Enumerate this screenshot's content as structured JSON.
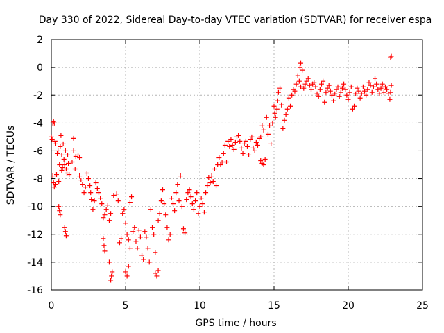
{
  "chart_data": {
    "type": "scatter",
    "title": "Day 330 of 2022, Sidereal Day-to-day VTEC variation (SDTVAR) for receiver espa",
    "xlabel": "GPS time / hours",
    "ylabel": "SDTVAR / TECUs",
    "xlim": [
      0,
      25
    ],
    "ylim": [
      -16,
      2
    ],
    "xticks": [
      0,
      5,
      10,
      15,
      20,
      25
    ],
    "yticks": [
      -16,
      -14,
      -12,
      -10,
      -8,
      -6,
      -4,
      -2,
      0,
      2
    ],
    "xtick_labels": [
      "0",
      "5",
      "10",
      "15",
      "20",
      "25"
    ],
    "ytick_labels": [
      "-16",
      "-14",
      "-12",
      "-10",
      "-8",
      "-6",
      "-4",
      "-2",
      "0",
      "2"
    ],
    "grid": true,
    "marker": "+",
    "color": "#ff0000",
    "series": [
      {
        "name": "SDTVAR",
        "points": [
          [
            0.0,
            -5.0
          ],
          [
            0.05,
            -5.2
          ],
          [
            0.1,
            -4.0
          ],
          [
            0.15,
            -3.9
          ],
          [
            0.2,
            -4.0
          ],
          [
            0.25,
            -5.3
          ],
          [
            0.3,
            -5.5
          ],
          [
            0.1,
            -7.8
          ],
          [
            0.15,
            -8.3
          ],
          [
            0.2,
            -8.6
          ],
          [
            0.3,
            -8.4
          ],
          [
            0.35,
            -7.7
          ],
          [
            0.4,
            -6.2
          ],
          [
            0.45,
            -6.0
          ],
          [
            0.5,
            -8.2
          ],
          [
            0.55,
            -7.0
          ],
          [
            0.6,
            -5.7
          ],
          [
            0.65,
            -4.9
          ],
          [
            0.7,
            -6.3
          ],
          [
            0.7,
            -7.4
          ],
          [
            0.75,
            -7.2
          ],
          [
            0.8,
            -5.5
          ],
          [
            0.85,
            -6.6
          ],
          [
            0.9,
            -7.0
          ],
          [
            0.95,
            -6.0
          ],
          [
            1.0,
            -7.3
          ],
          [
            1.05,
            -7.6
          ],
          [
            1.1,
            -6.3
          ],
          [
            1.15,
            -6.9
          ],
          [
            1.2,
            -7.7
          ],
          [
            0.5,
            -10.0
          ],
          [
            0.55,
            -10.3
          ],
          [
            0.6,
            -10.6
          ],
          [
            0.9,
            -11.5
          ],
          [
            0.95,
            -11.8
          ],
          [
            1.0,
            -12.1
          ],
          [
            1.4,
            -6.8
          ],
          [
            1.5,
            -6.0
          ],
          [
            1.5,
            -5.1
          ],
          [
            1.6,
            -7.3
          ],
          [
            1.65,
            -6.4
          ],
          [
            1.8,
            -6.3
          ],
          [
            1.9,
            -6.5
          ],
          [
            1.9,
            -7.8
          ],
          [
            2.0,
            -8.1
          ],
          [
            2.1,
            -8.4
          ],
          [
            2.2,
            -9.0
          ],
          [
            2.3,
            -8.6
          ],
          [
            2.4,
            -7.6
          ],
          [
            2.5,
            -8.0
          ],
          [
            2.6,
            -8.5
          ],
          [
            2.65,
            -9.0
          ],
          [
            2.7,
            -9.5
          ],
          [
            2.8,
            -10.2
          ],
          [
            2.9,
            -9.6
          ],
          [
            3.0,
            -8.3
          ],
          [
            3.1,
            -8.7
          ],
          [
            3.2,
            -9.0
          ],
          [
            3.3,
            -9.4
          ],
          [
            3.4,
            -9.8
          ],
          [
            3.5,
            -10.8
          ],
          [
            3.6,
            -10.6
          ],
          [
            3.7,
            -10.2
          ],
          [
            3.8,
            -9.9
          ],
          [
            3.9,
            -11.0
          ],
          [
            4.0,
            -10.5
          ],
          [
            3.5,
            -12.3
          ],
          [
            3.55,
            -12.8
          ],
          [
            3.6,
            -13.2
          ],
          [
            3.9,
            -14.0
          ],
          [
            4.0,
            -15.3
          ],
          [
            4.05,
            -15.0
          ],
          [
            4.1,
            -14.7
          ],
          [
            4.2,
            -9.2
          ],
          [
            4.4,
            -9.1
          ],
          [
            4.5,
            -9.6
          ],
          [
            4.6,
            -12.6
          ],
          [
            4.7,
            -12.3
          ],
          [
            4.8,
            -10.5
          ],
          [
            4.9,
            -10.2
          ],
          [
            5.0,
            -11.2
          ],
          [
            5.1,
            -12.0
          ],
          [
            5.2,
            -12.4
          ],
          [
            5.3,
            -13.0
          ],
          [
            5.0,
            -14.7
          ],
          [
            5.1,
            -15.0
          ],
          [
            5.2,
            -14.3
          ],
          [
            5.3,
            -9.7
          ],
          [
            5.4,
            -9.3
          ],
          [
            5.5,
            -11.8
          ],
          [
            5.6,
            -11.5
          ],
          [
            5.7,
            -12.5
          ],
          [
            5.8,
            -13.0
          ],
          [
            5.9,
            -11.7
          ],
          [
            6.0,
            -12.2
          ],
          [
            6.1,
            -13.5
          ],
          [
            6.2,
            -13.8
          ],
          [
            6.3,
            -11.8
          ],
          [
            6.4,
            -12.2
          ],
          [
            6.5,
            -13.0
          ],
          [
            6.6,
            -14.0
          ],
          [
            6.7,
            -10.2
          ],
          [
            6.8,
            -11.5
          ],
          [
            6.9,
            -12.0
          ],
          [
            7.0,
            -13.3
          ],
          [
            7.0,
            -14.8
          ],
          [
            7.1,
            -15.0
          ],
          [
            7.2,
            -14.6
          ],
          [
            7.2,
            -11.0
          ],
          [
            7.3,
            -10.5
          ],
          [
            7.4,
            -9.6
          ],
          [
            7.5,
            -8.8
          ],
          [
            7.6,
            -9.8
          ],
          [
            7.7,
            -10.6
          ],
          [
            7.8,
            -11.5
          ],
          [
            7.9,
            -12.4
          ],
          [
            8.0,
            -12.0
          ],
          [
            8.1,
            -9.4
          ],
          [
            8.2,
            -9.8
          ],
          [
            8.3,
            -10.3
          ],
          [
            8.4,
            -9.0
          ],
          [
            8.5,
            -8.4
          ],
          [
            8.6,
            -9.6
          ],
          [
            8.7,
            -7.8
          ],
          [
            8.8,
            -10.0
          ],
          [
            8.9,
            -11.6
          ],
          [
            9.0,
            -11.9
          ],
          [
            9.1,
            -9.5
          ],
          [
            9.2,
            -9.0
          ],
          [
            9.3,
            -8.8
          ],
          [
            9.4,
            -9.3
          ],
          [
            9.5,
            -9.8
          ],
          [
            9.6,
            -10.2
          ],
          [
            9.7,
            -9.6
          ],
          [
            9.8,
            -9.0
          ],
          [
            9.9,
            -10.5
          ],
          [
            10.0,
            -10.0
          ],
          [
            10.1,
            -9.4
          ],
          [
            10.2,
            -9.8
          ],
          [
            10.3,
            -10.4
          ],
          [
            10.4,
            -9.0
          ],
          [
            10.5,
            -8.5
          ],
          [
            10.6,
            -7.9
          ],
          [
            10.7,
            -8.3
          ],
          [
            10.8,
            -7.8
          ],
          [
            10.9,
            -8.2
          ],
          [
            11.0,
            -7.3
          ],
          [
            11.1,
            -8.5
          ],
          [
            11.2,
            -7.0
          ],
          [
            11.3,
            -6.5
          ],
          [
            11.4,
            -7.0
          ],
          [
            11.5,
            -6.8
          ],
          [
            11.6,
            -6.2
          ],
          [
            11.7,
            -5.6
          ],
          [
            11.8,
            -6.8
          ],
          [
            11.9,
            -5.3
          ],
          [
            12.0,
            -5.7
          ],
          [
            12.1,
            -5.2
          ],
          [
            12.2,
            -5.6
          ],
          [
            12.3,
            -5.9
          ],
          [
            12.4,
            -5.4
          ],
          [
            12.5,
            -5.0
          ],
          [
            12.6,
            -4.9
          ],
          [
            12.7,
            -5.3
          ],
          [
            12.8,
            -5.8
          ],
          [
            12.9,
            -6.2
          ],
          [
            13.0,
            -5.5
          ],
          [
            13.1,
            -5.3
          ],
          [
            13.2,
            -5.7
          ],
          [
            13.3,
            -6.3
          ],
          [
            13.4,
            -5.2
          ],
          [
            13.5,
            -5.0
          ],
          [
            13.6,
            -5.8
          ],
          [
            13.7,
            -6.0
          ],
          [
            13.8,
            -5.4
          ],
          [
            13.9,
            -5.6
          ],
          [
            14.0,
            -5.1
          ],
          [
            14.1,
            -5.0
          ],
          [
            14.2,
            -4.2
          ],
          [
            14.3,
            -4.5
          ],
          [
            14.1,
            -6.7
          ],
          [
            14.2,
            -6.9
          ],
          [
            14.3,
            -7.0
          ],
          [
            14.4,
            -6.6
          ],
          [
            14.5,
            -3.6
          ],
          [
            14.6,
            -4.8
          ],
          [
            14.7,
            -4.2
          ],
          [
            14.8,
            -5.5
          ],
          [
            14.9,
            -4.0
          ],
          [
            15.0,
            -2.8
          ],
          [
            15.05,
            -3.3
          ],
          [
            15.1,
            -3.6
          ],
          [
            15.2,
            -3.0
          ],
          [
            15.25,
            -2.4
          ],
          [
            15.3,
            -1.8
          ],
          [
            15.4,
            -1.5
          ],
          [
            15.5,
            -2.7
          ],
          [
            15.6,
            -4.4
          ],
          [
            15.7,
            -3.8
          ],
          [
            15.8,
            -3.4
          ],
          [
            15.9,
            -3.0
          ],
          [
            16.0,
            -2.2
          ],
          [
            16.1,
            -2.8
          ],
          [
            16.2,
            -2.0
          ],
          [
            16.3,
            -1.6
          ],
          [
            16.4,
            -1.7
          ],
          [
            16.5,
            -1.2
          ],
          [
            16.6,
            -0.6
          ],
          [
            16.7,
            -1.0
          ],
          [
            16.8,
            -1.4
          ],
          [
            16.75,
            0.0
          ],
          [
            16.8,
            0.3
          ],
          [
            16.9,
            -0.2
          ],
          [
            17.0,
            -1.5
          ],
          [
            17.1,
            -1.2
          ],
          [
            17.2,
            -1.0
          ],
          [
            17.3,
            -0.8
          ],
          [
            17.4,
            -1.3
          ],
          [
            17.5,
            -1.6
          ],
          [
            17.6,
            -1.2
          ],
          [
            17.7,
            -1.1
          ],
          [
            17.8,
            -1.4
          ],
          [
            17.9,
            -1.9
          ],
          [
            18.0,
            -2.1
          ],
          [
            18.1,
            -1.6
          ],
          [
            18.2,
            -1.2
          ],
          [
            18.3,
            -1.0
          ],
          [
            18.4,
            -2.5
          ],
          [
            18.5,
            -1.8
          ],
          [
            18.6,
            -1.5
          ],
          [
            18.7,
            -1.3
          ],
          [
            18.8,
            -1.7
          ],
          [
            18.9,
            -2.0
          ],
          [
            19.0,
            -2.4
          ],
          [
            19.1,
            -1.9
          ],
          [
            19.2,
            -1.6
          ],
          [
            19.3,
            -1.4
          ],
          [
            19.4,
            -2.1
          ],
          [
            19.5,
            -1.8
          ],
          [
            19.6,
            -1.5
          ],
          [
            19.7,
            -1.2
          ],
          [
            19.8,
            -1.6
          ],
          [
            19.9,
            -2.0
          ],
          [
            20.0,
            -2.3
          ],
          [
            20.1,
            -1.8
          ],
          [
            20.2,
            -1.4
          ],
          [
            20.3,
            -3.0
          ],
          [
            20.4,
            -2.8
          ],
          [
            20.5,
            -1.9
          ],
          [
            20.6,
            -1.5
          ],
          [
            20.7,
            -1.7
          ],
          [
            20.8,
            -2.2
          ],
          [
            20.9,
            -1.9
          ],
          [
            21.0,
            -1.4
          ],
          [
            21.1,
            -1.7
          ],
          [
            21.2,
            -2.0
          ],
          [
            21.3,
            -1.6
          ],
          [
            21.4,
            -1.1
          ],
          [
            21.5,
            -1.3
          ],
          [
            21.6,
            -1.8
          ],
          [
            21.7,
            -1.4
          ],
          [
            21.8,
            -0.8
          ],
          [
            21.9,
            -1.2
          ],
          [
            22.0,
            -1.6
          ],
          [
            22.1,
            -1.9
          ],
          [
            22.2,
            -1.5
          ],
          [
            22.3,
            -1.2
          ],
          [
            22.4,
            -1.8
          ],
          [
            22.5,
            -1.4
          ],
          [
            22.6,
            -1.6
          ],
          [
            22.7,
            -1.9
          ],
          [
            22.8,
            -2.3
          ],
          [
            22.85,
            -1.8
          ],
          [
            22.9,
            -1.3
          ],
          [
            22.85,
            0.7
          ],
          [
            22.9,
            0.8
          ]
        ]
      }
    ]
  }
}
